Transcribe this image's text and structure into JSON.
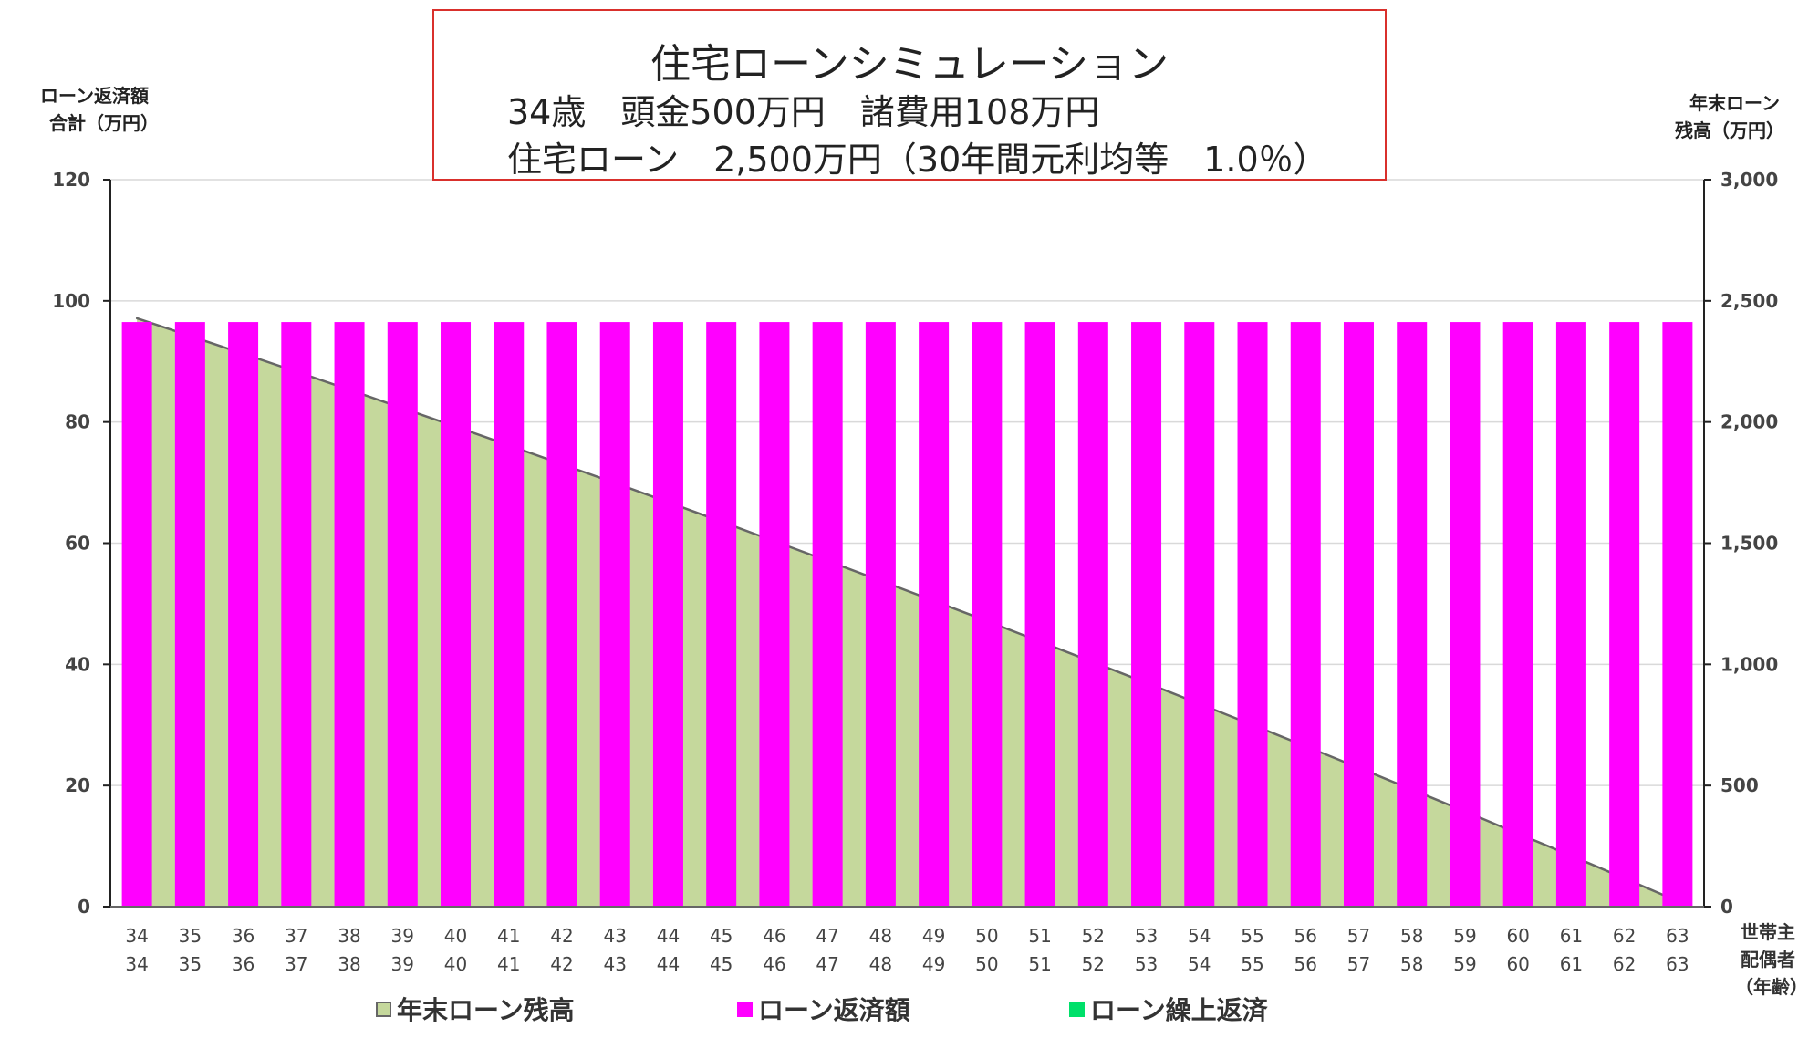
{
  "title": {
    "line1": "住宅ローンシミュレーション",
    "line2": "34歳　頭金500万円　諸費用108万円",
    "line3": "住宅ローン　2,500万円（30年間元利均等　1.0％）"
  },
  "left_axis_title": [
    "ローン返済額",
    "合計（万円）"
  ],
  "right_axis_title": [
    "年末ローン",
    "残高（万円）"
  ],
  "x_axis_title": [
    "世帯主",
    "配偶者",
    "（年齢）"
  ],
  "legend": [
    {
      "label": "年末ローン残高",
      "color": "#c5d89c"
    },
    {
      "label": "ローン返済額",
      "color": "#ff00ff"
    },
    {
      "label": "ローン繰上返済",
      "color": "#00e06a"
    }
  ],
  "chart_data": {
    "type": "bar",
    "categories_head": [
      "34",
      "35",
      "36",
      "37",
      "38",
      "39",
      "40",
      "41",
      "42",
      "43",
      "44",
      "45",
      "46",
      "47",
      "48",
      "49",
      "50",
      "51",
      "52",
      "53",
      "54",
      "55",
      "56",
      "57",
      "58",
      "59",
      "60",
      "61",
      "62",
      "63"
    ],
    "categories_spouse": [
      "34",
      "35",
      "36",
      "37",
      "38",
      "39",
      "40",
      "41",
      "42",
      "43",
      "44",
      "45",
      "46",
      "47",
      "48",
      "49",
      "50",
      "51",
      "52",
      "53",
      "54",
      "55",
      "56",
      "57",
      "58",
      "59",
      "60",
      "61",
      "62",
      "63"
    ],
    "ylim_left": [
      0,
      120
    ],
    "yticks_left": [
      0,
      20,
      40,
      60,
      80,
      100,
      120
    ],
    "ytick_labels_left": [
      "0",
      "20",
      "40",
      "60",
      "80",
      "100",
      "120"
    ],
    "ylim_right": [
      0,
      3000
    ],
    "yticks_right": [
      0,
      500,
      1000,
      1500,
      2000,
      2500,
      3000
    ],
    "ytick_labels_right": [
      "0",
      "500",
      "1,000",
      "1,500",
      "2,000",
      "2,500",
      "3,000"
    ],
    "series": [
      {
        "name": "ローン返済額",
        "type": "bar",
        "axis": "left",
        "color": "#ff00ff",
        "values": [
          96.5,
          96.5,
          96.5,
          96.5,
          96.5,
          96.5,
          96.5,
          96.5,
          96.5,
          96.5,
          96.5,
          96.5,
          96.5,
          96.5,
          96.5,
          96.5,
          96.5,
          96.5,
          96.5,
          96.5,
          96.5,
          96.5,
          96.5,
          96.5,
          96.5,
          96.5,
          96.5,
          96.5,
          96.5,
          96.5
        ]
      },
      {
        "name": "年末ローン残高",
        "type": "area",
        "axis": "right",
        "color": "#c5d89c",
        "values": [
          2428,
          2355,
          2282,
          2208,
          2133,
          2057,
          1981,
          1904,
          1826,
          1748,
          1669,
          1589,
          1508,
          1427,
          1345,
          1262,
          1179,
          1094,
          1009,
          924,
          837,
          750,
          662,
          573,
          483,
          393,
          301,
          210,
          117,
          23
        ]
      },
      {
        "name": "ローン繰上返済",
        "type": "bar",
        "axis": "left",
        "color": "#00e06a",
        "values": [
          0,
          0,
          0,
          0,
          0,
          0,
          0,
          0,
          0,
          0,
          0,
          0,
          0,
          0,
          0,
          0,
          0,
          0,
          0,
          0,
          0,
          0,
          0,
          0,
          0,
          0,
          0,
          0,
          0,
          0
        ]
      }
    ],
    "grid": true
  }
}
